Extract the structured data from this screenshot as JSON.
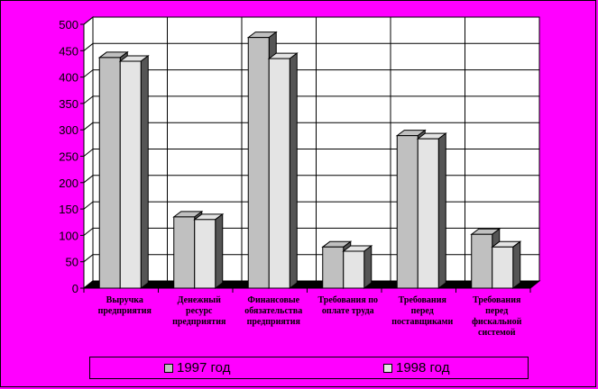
{
  "chart_data": {
    "type": "bar",
    "style": "3d-clustered-column",
    "categories": [
      [
        "Выручка",
        "предприятия"
      ],
      [
        "Денежный",
        "ресурс",
        "предприятия"
      ],
      [
        "Финансовые",
        "обязательства",
        "предприятия"
      ],
      [
        "Требования по",
        "оплате труда"
      ],
      [
        "Требования",
        "перед",
        "поставщиками"
      ],
      [
        "Требования",
        "перед",
        "фискальной",
        "системой"
      ]
    ],
    "series": [
      {
        "name": "1997 год",
        "values": [
          437,
          135,
          475,
          78,
          289,
          102
        ],
        "color": "#c0c0c0"
      },
      {
        "name": "1998 год",
        "values": [
          430,
          130,
          435,
          70,
          283,
          78
        ],
        "color": "#e4e4e4"
      }
    ],
    "yticks": [
      0,
      50,
      100,
      150,
      200,
      250,
      300,
      350,
      400,
      450,
      500
    ],
    "ylim": [
      0,
      500
    ],
    "grid": true,
    "legend_position": "bottom",
    "colors": {
      "background": "#ff00ff",
      "plot_wall": "#ffffff",
      "floor": "#000000",
      "side_shade": "#555555"
    }
  }
}
